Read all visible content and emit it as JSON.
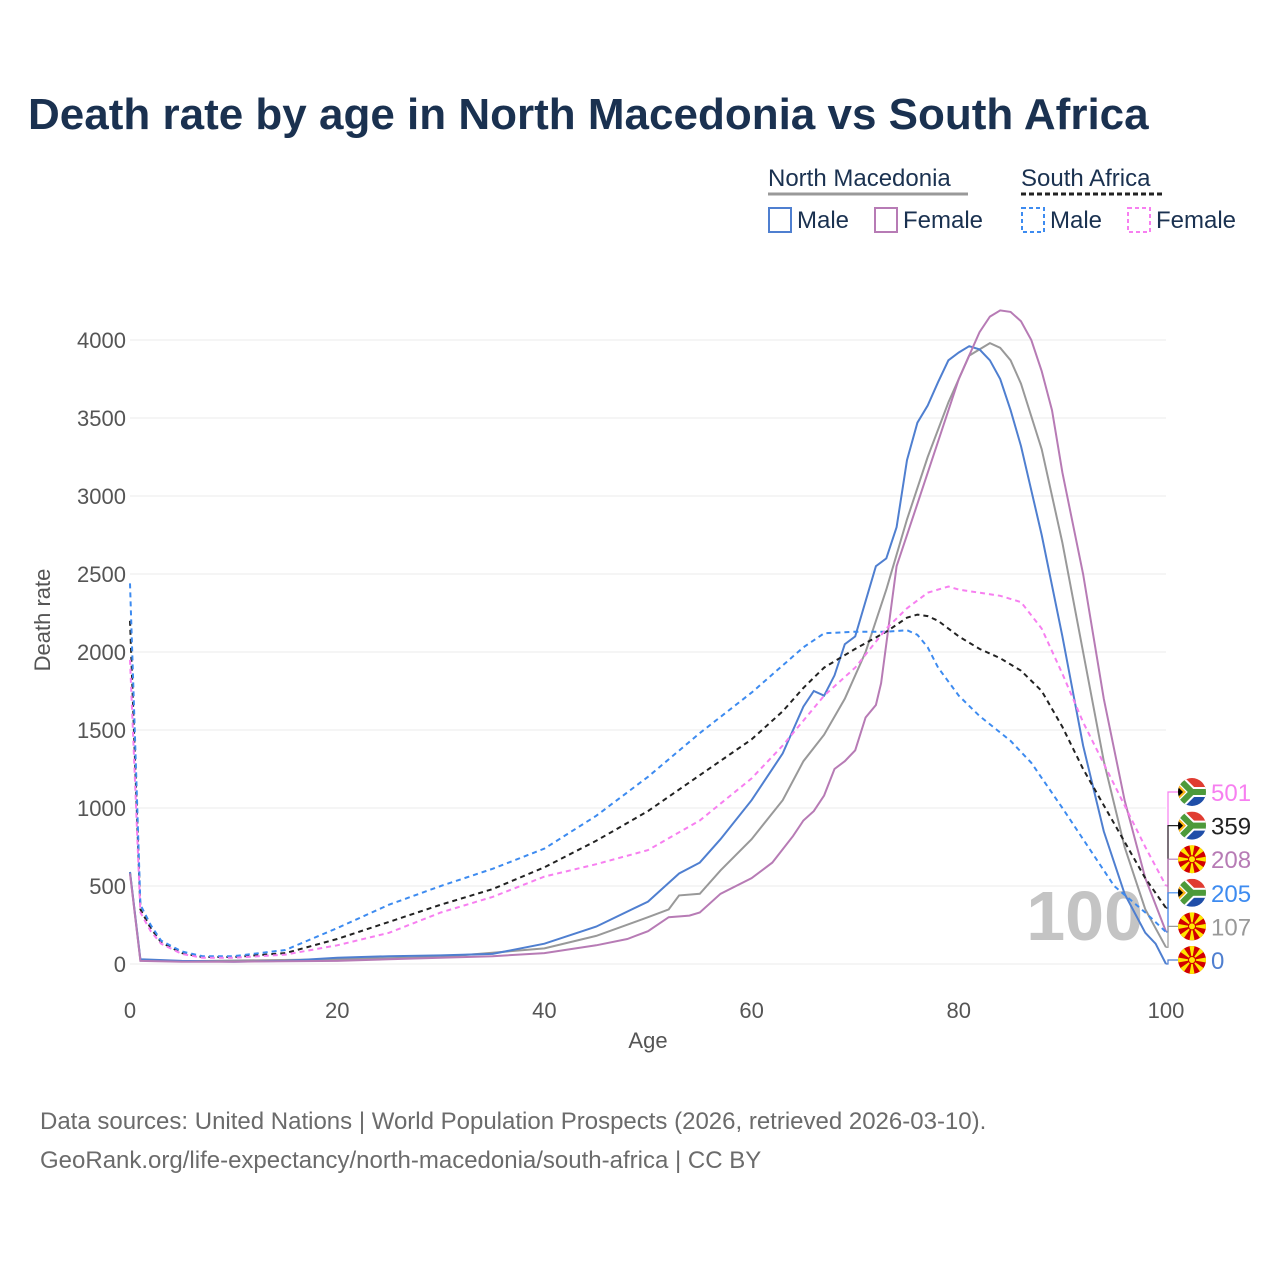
{
  "title": "Death rate by age in North Macedonia vs South Africa",
  "source_line1": "Data sources: United Nations | World Population Prospects (2026, retrieved 2026-03-10).",
  "source_line2": "GeoRank.org/life-expectancy/north-macedonia/south-africa | CC BY",
  "chart_data": {
    "type": "line",
    "title": "Death rate by age in North Macedonia vs South Africa",
    "xlabel": "Age",
    "ylabel": "Death rate",
    "xlim": [
      0,
      100
    ],
    "ylim": [
      0,
      4000
    ],
    "xticks": [
      0,
      20,
      40,
      60,
      80,
      100
    ],
    "yticks": [
      0,
      500,
      1000,
      1500,
      2000,
      2500,
      3000,
      3500,
      4000
    ],
    "grid": true,
    "age_marker": "100",
    "legend": {
      "placement": "top-right",
      "groups": [
        {
          "country": "North Macedonia",
          "items": [
            "Male",
            "Female"
          ]
        },
        {
          "country": "South Africa",
          "items": [
            "Male",
            "Female"
          ]
        }
      ]
    },
    "series": [
      {
        "name": "North Macedonia Total",
        "color": "#999999",
        "dashed": false,
        "end_value": "107",
        "flag": "mk",
        "points": [
          [
            0,
            590
          ],
          [
            1,
            25
          ],
          [
            5,
            18
          ],
          [
            20,
            30
          ],
          [
            30,
            45
          ],
          [
            40,
            100
          ],
          [
            45,
            180
          ],
          [
            50,
            300
          ],
          [
            52,
            350
          ],
          [
            53,
            440
          ],
          [
            55,
            450
          ],
          [
            57,
            600
          ],
          [
            60,
            800
          ],
          [
            63,
            1050
          ],
          [
            65,
            1300
          ],
          [
            67,
            1470
          ],
          [
            69,
            1700
          ],
          [
            71,
            2000
          ],
          [
            73,
            2400
          ],
          [
            75,
            2850
          ],
          [
            77,
            3250
          ],
          [
            79,
            3600
          ],
          [
            81,
            3900
          ],
          [
            83,
            3980
          ],
          [
            84,
            3950
          ],
          [
            85,
            3870
          ],
          [
            86,
            3720
          ],
          [
            88,
            3300
          ],
          [
            90,
            2700
          ],
          [
            92,
            2000
          ],
          [
            94,
            1300
          ],
          [
            96,
            750
          ],
          [
            98,
            350
          ],
          [
            100,
            107
          ]
        ]
      },
      {
        "name": "North Macedonia Male",
        "color": "#4f7fd0",
        "dashed": false,
        "end_value": "0",
        "flag": "mk",
        "points": [
          [
            0,
            590
          ],
          [
            1,
            30
          ],
          [
            5,
            20
          ],
          [
            10,
            15
          ],
          [
            15,
            20
          ],
          [
            20,
            40
          ],
          [
            25,
            50
          ],
          [
            30,
            55
          ],
          [
            35,
            65
          ],
          [
            40,
            130
          ],
          [
            45,
            240
          ],
          [
            50,
            400
          ],
          [
            53,
            580
          ],
          [
            55,
            650
          ],
          [
            57,
            800
          ],
          [
            60,
            1050
          ],
          [
            63,
            1350
          ],
          [
            65,
            1650
          ],
          [
            66,
            1750
          ],
          [
            67,
            1720
          ],
          [
            68,
            1850
          ],
          [
            69,
            2050
          ],
          [
            70,
            2100
          ],
          [
            72,
            2550
          ],
          [
            73,
            2600
          ],
          [
            74,
            2800
          ],
          [
            75,
            3230
          ],
          [
            76,
            3470
          ],
          [
            77,
            3580
          ],
          [
            78,
            3730
          ],
          [
            79,
            3870
          ],
          [
            80,
            3920
          ],
          [
            81,
            3960
          ],
          [
            82,
            3940
          ],
          [
            83,
            3870
          ],
          [
            84,
            3750
          ],
          [
            85,
            3550
          ],
          [
            86,
            3320
          ],
          [
            88,
            2750
          ],
          [
            90,
            2100
          ],
          [
            92,
            1400
          ],
          [
            94,
            850
          ],
          [
            96,
            450
          ],
          [
            98,
            200
          ],
          [
            99,
            130
          ],
          [
            100,
            0
          ]
        ]
      },
      {
        "name": "North Macedonia Female",
        "color": "#b77bb5",
        "dashed": false,
        "end_value": "208",
        "flag": "mk",
        "points": [
          [
            0,
            580
          ],
          [
            1,
            20
          ],
          [
            5,
            15
          ],
          [
            10,
            15
          ],
          [
            20,
            20
          ],
          [
            25,
            30
          ],
          [
            30,
            40
          ],
          [
            35,
            50
          ],
          [
            40,
            70
          ],
          [
            45,
            120
          ],
          [
            48,
            160
          ],
          [
            50,
            210
          ],
          [
            52,
            300
          ],
          [
            54,
            310
          ],
          [
            55,
            330
          ],
          [
            57,
            450
          ],
          [
            60,
            550
          ],
          [
            62,
            650
          ],
          [
            64,
            820
          ],
          [
            65,
            920
          ],
          [
            66,
            980
          ],
          [
            67,
            1080
          ],
          [
            68,
            1250
          ],
          [
            69,
            1300
          ],
          [
            70,
            1370
          ],
          [
            71,
            1580
          ],
          [
            72,
            1660
          ],
          [
            72.5,
            1800
          ],
          [
            74,
            2550
          ],
          [
            76,
            2950
          ],
          [
            78,
            3350
          ],
          [
            80,
            3750
          ],
          [
            82,
            4050
          ],
          [
            83,
            4150
          ],
          [
            84,
            4190
          ],
          [
            85,
            4180
          ],
          [
            86,
            4120
          ],
          [
            87,
            4000
          ],
          [
            88,
            3800
          ],
          [
            89,
            3550
          ],
          [
            90,
            3150
          ],
          [
            92,
            2500
          ],
          [
            94,
            1700
          ],
          [
            96,
            1050
          ],
          [
            98,
            550
          ],
          [
            100,
            208
          ]
        ]
      },
      {
        "name": "South Africa Total",
        "color": "#222222",
        "dashed": true,
        "end_value": "359",
        "flag": "za",
        "points": [
          [
            0,
            2200
          ],
          [
            1,
            350
          ],
          [
            2,
            230
          ],
          [
            3,
            140
          ],
          [
            5,
            70
          ],
          [
            7,
            45
          ],
          [
            10,
            45
          ],
          [
            15,
            70
          ],
          [
            20,
            160
          ],
          [
            25,
            270
          ],
          [
            30,
            380
          ],
          [
            35,
            480
          ],
          [
            40,
            620
          ],
          [
            45,
            790
          ],
          [
            50,
            980
          ],
          [
            55,
            1210
          ],
          [
            60,
            1440
          ],
          [
            63,
            1620
          ],
          [
            65,
            1770
          ],
          [
            67,
            1900
          ],
          [
            70,
            2020
          ],
          [
            73,
            2130
          ],
          [
            75,
            2220
          ],
          [
            76,
            2240
          ],
          [
            77,
            2230
          ],
          [
            78,
            2200
          ],
          [
            80,
            2100
          ],
          [
            82,
            2020
          ],
          [
            84,
            1960
          ],
          [
            86,
            1880
          ],
          [
            88,
            1750
          ],
          [
            90,
            1520
          ],
          [
            92,
            1250
          ],
          [
            95,
            900
          ],
          [
            98,
            550
          ],
          [
            100,
            359
          ]
        ]
      },
      {
        "name": "South Africa Male",
        "color": "#3d8bf0",
        "dashed": true,
        "end_value": "205",
        "flag": "za",
        "points": [
          [
            0,
            2440
          ],
          [
            1,
            380
          ],
          [
            2,
            250
          ],
          [
            3,
            150
          ],
          [
            5,
            80
          ],
          [
            7,
            50
          ],
          [
            10,
            50
          ],
          [
            15,
            90
          ],
          [
            20,
            230
          ],
          [
            25,
            380
          ],
          [
            30,
            500
          ],
          [
            35,
            610
          ],
          [
            40,
            740
          ],
          [
            45,
            950
          ],
          [
            50,
            1200
          ],
          [
            55,
            1480
          ],
          [
            60,
            1740
          ],
          [
            65,
            2030
          ],
          [
            67,
            2120
          ],
          [
            70,
            2130
          ],
          [
            73,
            2130
          ],
          [
            75,
            2140
          ],
          [
            76,
            2110
          ],
          [
            77,
            2030
          ],
          [
            78,
            1900
          ],
          [
            80,
            1720
          ],
          [
            82,
            1590
          ],
          [
            85,
            1430
          ],
          [
            87,
            1290
          ],
          [
            90,
            1000
          ],
          [
            92,
            800
          ],
          [
            95,
            500
          ],
          [
            98,
            330
          ],
          [
            100,
            205
          ]
        ]
      },
      {
        "name": "South Africa Female",
        "color": "#f77ff0",
        "dashed": true,
        "end_value": "501",
        "flag": "za",
        "points": [
          [
            0,
            1950
          ],
          [
            1,
            330
          ],
          [
            2,
            210
          ],
          [
            3,
            130
          ],
          [
            5,
            65
          ],
          [
            7,
            40
          ],
          [
            10,
            40
          ],
          [
            15,
            60
          ],
          [
            20,
            120
          ],
          [
            25,
            200
          ],
          [
            30,
            330
          ],
          [
            35,
            430
          ],
          [
            40,
            560
          ],
          [
            45,
            640
          ],
          [
            50,
            730
          ],
          [
            55,
            920
          ],
          [
            60,
            1190
          ],
          [
            63,
            1400
          ],
          [
            65,
            1560
          ],
          [
            67,
            1720
          ],
          [
            70,
            1900
          ],
          [
            73,
            2150
          ],
          [
            75,
            2280
          ],
          [
            77,
            2380
          ],
          [
            79,
            2420
          ],
          [
            80,
            2400
          ],
          [
            82,
            2380
          ],
          [
            84,
            2360
          ],
          [
            86,
            2320
          ],
          [
            88,
            2150
          ],
          [
            90,
            1860
          ],
          [
            92,
            1550
          ],
          [
            95,
            1150
          ],
          [
            98,
            750
          ],
          [
            100,
            501
          ]
        ]
      }
    ]
  }
}
